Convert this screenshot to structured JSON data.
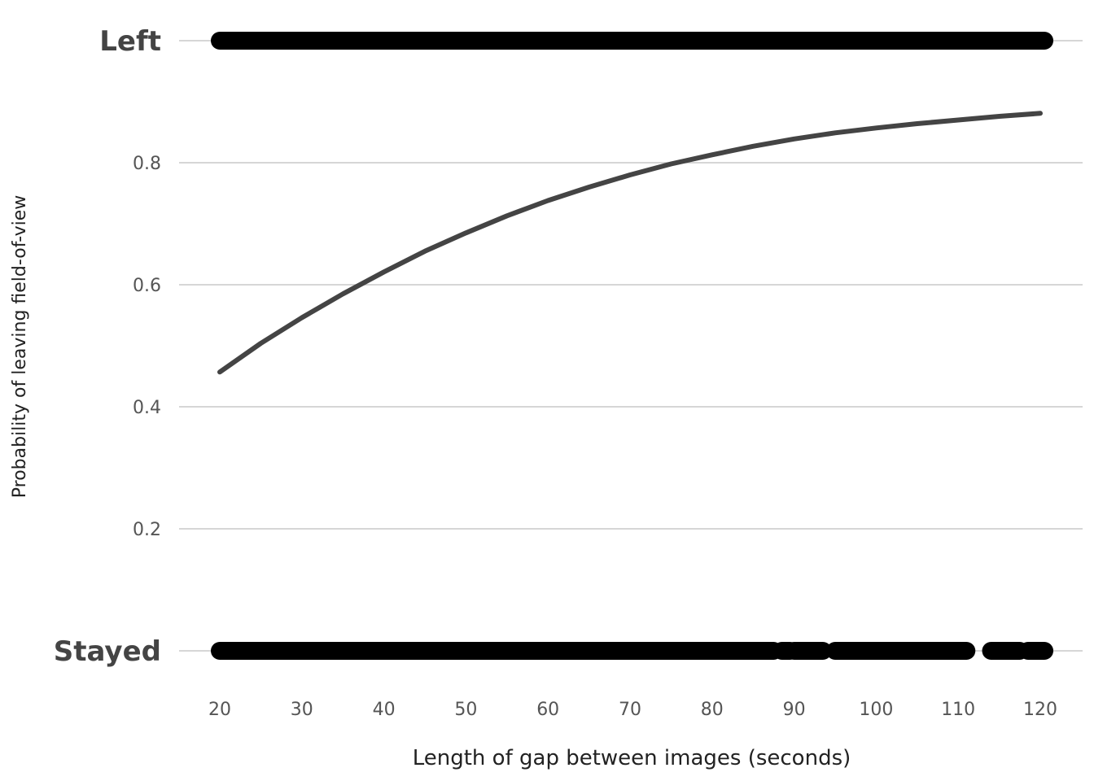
{
  "chart_data": {
    "type": "line",
    "xlabel": "Length of gap between images (seconds)",
    "ylabel": "Probability of leaving field-of-view",
    "xlim": [
      15,
      125
    ],
    "ylim": [
      0,
      1
    ],
    "x_ticks": [
      20,
      30,
      40,
      50,
      60,
      70,
      80,
      90,
      100,
      110,
      120
    ],
    "y_ticks": [
      {
        "value": 1.0,
        "label": "Left",
        "emphasis": true
      },
      {
        "value": 0.8,
        "label": "0.8"
      },
      {
        "value": 0.6,
        "label": "0.6"
      },
      {
        "value": 0.4,
        "label": "0.4"
      },
      {
        "value": 0.2,
        "label": "0.2"
      },
      {
        "value": 0.0,
        "label": "Stayed",
        "emphasis": true
      }
    ],
    "grid": "horizontal",
    "line_color": "#444444",
    "point_color": "#000000",
    "series": [
      {
        "type": "line",
        "x": [
          20,
          25,
          30,
          35,
          40,
          45,
          50,
          55,
          60,
          65,
          70,
          75,
          80,
          85,
          90,
          95,
          100,
          105,
          110,
          115,
          120
        ],
        "y": [
          0.457,
          0.504,
          0.546,
          0.585,
          0.621,
          0.655,
          0.685,
          0.713,
          0.738,
          0.76,
          0.78,
          0.798,
          0.813,
          0.827,
          0.839,
          0.849,
          0.857,
          0.864,
          0.87,
          0.876,
          0.881
        ]
      }
    ],
    "observations": [
      {
        "outcome": "Left",
        "y": 1,
        "x_ranges": [
          [
            20,
            120.5
          ]
        ]
      },
      {
        "outcome": "Stayed",
        "y": 0,
        "x_ranges": [
          [
            20,
            87.5
          ],
          [
            88.5,
            89.5
          ],
          [
            90,
            93.5
          ],
          [
            95,
            111
          ],
          [
            114,
            117.5
          ],
          [
            118.5,
            120.5
          ]
        ]
      }
    ]
  }
}
